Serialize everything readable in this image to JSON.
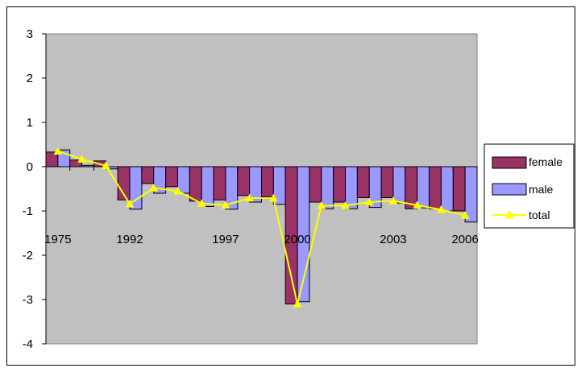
{
  "chart_data": {
    "type": "bar",
    "categories": [
      "1975",
      "",
      "",
      "1992",
      "",
      "",
      "",
      "1997",
      "",
      "",
      "2000",
      "",
      "",
      "",
      "2003",
      "",
      "",
      "2006"
    ],
    "x_tick_labels": [
      "1975",
      "1992",
      "1997",
      "2000",
      "2003",
      "2006"
    ],
    "series": [
      {
        "name": "female",
        "type": "bar",
        "color": "#993366",
        "values": [
          0.33,
          0.15,
          0.13,
          -0.75,
          -0.38,
          -0.45,
          -0.78,
          -0.75,
          -0.65,
          -0.68,
          -3.1,
          -0.8,
          -0.8,
          -0.7,
          -0.7,
          -0.95,
          -0.95,
          -1.0
        ]
      },
      {
        "name": "male",
        "type": "bar",
        "color": "#9999ff",
        "values": [
          0.38,
          0.03,
          -0.05,
          -0.96,
          -0.6,
          -0.6,
          -0.9,
          -0.96,
          -0.8,
          -0.85,
          -3.05,
          -0.95,
          -0.95,
          -0.92,
          -0.82,
          -0.93,
          -1.0,
          -1.25
        ]
      },
      {
        "name": "total",
        "type": "line",
        "color": "#ffff00",
        "marker": "triangle",
        "values": [
          0.35,
          0.17,
          0.02,
          -0.84,
          -0.48,
          -0.55,
          -0.83,
          -0.87,
          -0.71,
          -0.71,
          -3.1,
          -0.88,
          -0.88,
          -0.8,
          -0.77,
          -0.87,
          -0.97,
          -1.1
        ]
      }
    ],
    "ylim": [
      -4,
      3
    ],
    "yticks": [
      -4,
      -3,
      -2,
      -1,
      0,
      1,
      2,
      3
    ],
    "xlabel": "",
    "ylabel": "",
    "title": "",
    "plot_background": "#c0c0c0",
    "grid": false,
    "legend_position": "right"
  }
}
